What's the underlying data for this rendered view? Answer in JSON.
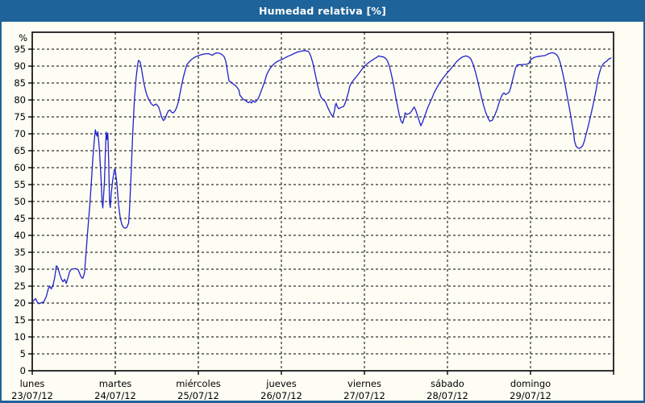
{
  "window": {
    "title": "Humedad relativa [%]"
  },
  "colors": {
    "titlebar_bg": "#1e6399",
    "titlebar_text": "#ffffff",
    "content_bg": "#fdfdf4",
    "grid": "#000000",
    "axis": "#000000",
    "label": "#000000",
    "line": "#2121cb"
  },
  "chart_data": {
    "type": "line",
    "title": "Humedad relativa [%]",
    "ylabel": "%",
    "ylim": [
      0,
      100
    ],
    "ytick_min": 0,
    "ytick_max": 95,
    "ytick_step": 5,
    "grid": true,
    "legend": "none",
    "x_days": [
      {
        "name": "lunes",
        "date": "23/07/12"
      },
      {
        "name": "martes",
        "date": "24/07/12"
      },
      {
        "name": "miércoles",
        "date": "25/07/12"
      },
      {
        "name": "jueves",
        "date": "26/07/12"
      },
      {
        "name": "viernes",
        "date": "27/07/12"
      },
      {
        "name": "sábado",
        "date": "28/07/12"
      },
      {
        "name": "domingo",
        "date": "29/07/12"
      }
    ],
    "series": [
      {
        "name": "Humedad relativa",
        "color": "#2121cb",
        "points": [
          [
            0.0,
            20.3
          ],
          [
            0.02,
            20.8
          ],
          [
            0.04,
            21.3
          ],
          [
            0.06,
            20.3
          ],
          [
            0.08,
            19.8
          ],
          [
            0.11,
            20.1
          ],
          [
            0.14,
            20.4
          ],
          [
            0.17,
            22.0
          ],
          [
            0.19,
            24.0
          ],
          [
            0.21,
            25.0
          ],
          [
            0.23,
            24.2
          ],
          [
            0.25,
            25.3
          ],
          [
            0.27,
            27.5
          ],
          [
            0.29,
            31.0
          ],
          [
            0.31,
            30.4
          ],
          [
            0.33,
            28.6
          ],
          [
            0.35,
            27.2
          ],
          [
            0.37,
            26.3
          ],
          [
            0.39,
            27.0
          ],
          [
            0.41,
            25.8
          ],
          [
            0.43,
            27.5
          ],
          [
            0.45,
            29.2
          ],
          [
            0.47,
            30.0
          ],
          [
            0.5,
            30.1
          ],
          [
            0.52,
            30.2
          ],
          [
            0.55,
            29.9
          ],
          [
            0.57,
            28.8
          ],
          [
            0.59,
            27.6
          ],
          [
            0.61,
            27.3
          ],
          [
            0.63,
            29.0
          ],
          [
            0.65,
            35.7
          ],
          [
            0.67,
            42.0
          ],
          [
            0.69,
            48.0
          ],
          [
            0.71,
            55.0
          ],
          [
            0.73,
            63.0
          ],
          [
            0.75,
            69.0
          ],
          [
            0.76,
            71.2
          ],
          [
            0.77,
            70.2
          ],
          [
            0.78,
            69.3
          ],
          [
            0.79,
            70.6
          ],
          [
            0.81,
            65.0
          ],
          [
            0.83,
            56.0
          ],
          [
            0.84,
            50.3
          ],
          [
            0.85,
            48.1
          ],
          [
            0.87,
            56.0
          ],
          [
            0.88,
            64.0
          ],
          [
            0.89,
            70.5
          ],
          [
            0.9,
            68.3
          ],
          [
            0.91,
            70.2
          ],
          [
            0.92,
            62.0
          ],
          [
            0.93,
            50.0
          ],
          [
            0.94,
            48.2
          ],
          [
            0.95,
            52.0
          ],
          [
            0.97,
            56.5
          ],
          [
            0.99,
            59.5
          ],
          [
            1.0,
            59.3
          ],
          [
            1.02,
            55.0
          ],
          [
            1.04,
            49.0
          ],
          [
            1.06,
            45.0
          ],
          [
            1.08,
            43.2
          ],
          [
            1.1,
            42.3
          ],
          [
            1.12,
            42.1
          ],
          [
            1.14,
            42.4
          ],
          [
            1.16,
            43.6
          ],
          [
            1.17,
            47.0
          ],
          [
            1.19,
            58.0
          ],
          [
            1.21,
            70.0
          ],
          [
            1.23,
            80.0
          ],
          [
            1.25,
            86.5
          ],
          [
            1.27,
            90.5
          ],
          [
            1.28,
            91.7
          ],
          [
            1.3,
            91.2
          ],
          [
            1.32,
            88.5
          ],
          [
            1.34,
            85.5
          ],
          [
            1.36,
            83.2
          ],
          [
            1.38,
            81.5
          ],
          [
            1.4,
            80.3
          ],
          [
            1.42,
            79.4
          ],
          [
            1.44,
            78.7
          ],
          [
            1.46,
            78.3
          ],
          [
            1.49,
            78.8
          ],
          [
            1.52,
            78.0
          ],
          [
            1.54,
            76.5
          ],
          [
            1.56,
            74.8
          ],
          [
            1.58,
            73.9
          ],
          [
            1.6,
            74.5
          ],
          [
            1.62,
            75.8
          ],
          [
            1.64,
            76.8
          ],
          [
            1.66,
            77.0
          ],
          [
            1.68,
            76.3
          ],
          [
            1.7,
            76.2
          ],
          [
            1.72,
            76.8
          ],
          [
            1.74,
            77.8
          ],
          [
            1.76,
            79.5
          ],
          [
            1.78,
            82.0
          ],
          [
            1.8,
            84.5
          ],
          [
            1.82,
            86.8
          ],
          [
            1.84,
            88.6
          ],
          [
            1.86,
            90.3
          ],
          [
            1.89,
            91.3
          ],
          [
            1.92,
            92.0
          ],
          [
            1.95,
            92.5
          ],
          [
            1.98,
            92.9
          ],
          [
            2.0,
            93.1
          ],
          [
            2.04,
            93.4
          ],
          [
            2.08,
            93.6
          ],
          [
            2.12,
            93.7
          ],
          [
            2.15,
            93.4
          ],
          [
            2.17,
            93.2
          ],
          [
            2.19,
            93.6
          ],
          [
            2.22,
            93.9
          ],
          [
            2.25,
            93.8
          ],
          [
            2.28,
            93.5
          ],
          [
            2.31,
            92.8
          ],
          [
            2.33,
            91.5
          ],
          [
            2.35,
            88.5
          ],
          [
            2.37,
            85.6
          ],
          [
            2.4,
            85.2
          ],
          [
            2.42,
            84.7
          ],
          [
            2.45,
            84.2
          ],
          [
            2.47,
            83.6
          ],
          [
            2.49,
            82.8
          ],
          [
            2.5,
            81.4
          ],
          [
            2.52,
            80.8
          ],
          [
            2.54,
            80.2
          ],
          [
            2.57,
            79.8
          ],
          [
            2.6,
            79.2
          ],
          [
            2.62,
            79.5
          ],
          [
            2.64,
            79.1
          ],
          [
            2.66,
            79.8
          ],
          [
            2.68,
            79.3
          ],
          [
            2.7,
            79.7
          ],
          [
            2.72,
            80.4
          ],
          [
            2.74,
            81.5
          ],
          [
            2.77,
            83.5
          ],
          [
            2.8,
            85.5
          ],
          [
            2.82,
            87.3
          ],
          [
            2.85,
            88.8
          ],
          [
            2.88,
            89.8
          ],
          [
            2.91,
            90.6
          ],
          [
            2.94,
            91.2
          ],
          [
            2.97,
            91.6
          ],
          [
            3.0,
            91.9
          ],
          [
            3.04,
            92.4
          ],
          [
            3.08,
            92.9
          ],
          [
            3.12,
            93.3
          ],
          [
            3.16,
            93.8
          ],
          [
            3.2,
            94.2
          ],
          [
            3.24,
            94.4
          ],
          [
            3.28,
            94.6
          ],
          [
            3.32,
            94.4
          ],
          [
            3.34,
            93.8
          ],
          [
            3.36,
            92.5
          ],
          [
            3.38,
            90.8
          ],
          [
            3.4,
            88.5
          ],
          [
            3.42,
            86.2
          ],
          [
            3.44,
            84.0
          ],
          [
            3.46,
            82.0
          ],
          [
            3.48,
            80.7
          ],
          [
            3.5,
            80.2
          ],
          [
            3.51,
            79.9
          ],
          [
            3.53,
            79.5
          ],
          [
            3.55,
            78.3
          ],
          [
            3.57,
            77.2
          ],
          [
            3.59,
            76.2
          ],
          [
            3.61,
            75.3
          ],
          [
            3.62,
            75.1
          ],
          [
            3.64,
            76.8
          ],
          [
            3.65,
            78.5
          ],
          [
            3.66,
            79.0
          ],
          [
            3.67,
            78.2
          ],
          [
            3.69,
            77.4
          ],
          [
            3.71,
            77.7
          ],
          [
            3.73,
            77.9
          ],
          [
            3.75,
            78.1
          ],
          [
            3.77,
            79.2
          ],
          [
            3.79,
            80.8
          ],
          [
            3.81,
            82.4
          ],
          [
            3.82,
            83.8
          ],
          [
            3.84,
            84.9
          ],
          [
            3.86,
            85.6
          ],
          [
            3.89,
            86.5
          ],
          [
            3.92,
            87.4
          ],
          [
            3.95,
            88.4
          ],
          [
            3.98,
            89.4
          ],
          [
            4.0,
            90.0
          ],
          [
            4.03,
            90.6
          ],
          [
            4.06,
            91.2
          ],
          [
            4.09,
            91.7
          ],
          [
            4.12,
            92.2
          ],
          [
            4.15,
            92.6
          ],
          [
            4.17,
            93.0
          ],
          [
            4.2,
            92.8
          ],
          [
            4.23,
            92.7
          ],
          [
            4.26,
            92.2
          ],
          [
            4.28,
            91.4
          ],
          [
            4.3,
            90.0
          ],
          [
            4.32,
            88.0
          ],
          [
            4.34,
            85.8
          ],
          [
            4.36,
            83.2
          ],
          [
            4.38,
            80.5
          ],
          [
            4.4,
            78.0
          ],
          [
            4.42,
            75.5
          ],
          [
            4.44,
            73.8
          ],
          [
            4.46,
            73.1
          ],
          [
            4.48,
            74.8
          ],
          [
            4.49,
            76.2
          ],
          [
            4.51,
            75.7
          ],
          [
            4.53,
            75.9
          ],
          [
            4.55,
            76.1
          ],
          [
            4.57,
            76.8
          ],
          [
            4.6,
            77.9
          ],
          [
            4.62,
            76.8
          ],
          [
            4.64,
            75.3
          ],
          [
            4.66,
            73.8
          ],
          [
            4.68,
            72.4
          ],
          [
            4.7,
            73.4
          ],
          [
            4.72,
            74.9
          ],
          [
            4.74,
            76.2
          ],
          [
            4.76,
            77.6
          ],
          [
            4.79,
            79.3
          ],
          [
            4.82,
            80.9
          ],
          [
            4.84,
            82.2
          ],
          [
            4.87,
            83.5
          ],
          [
            4.9,
            84.8
          ],
          [
            4.93,
            85.9
          ],
          [
            4.96,
            86.9
          ],
          [
            4.99,
            87.8
          ],
          [
            5.0,
            88.1
          ],
          [
            5.03,
            88.9
          ],
          [
            5.07,
            90.1
          ],
          [
            5.11,
            91.3
          ],
          [
            5.15,
            92.2
          ],
          [
            5.18,
            92.7
          ],
          [
            5.22,
            93.0
          ],
          [
            5.25,
            92.8
          ],
          [
            5.28,
            92.2
          ],
          [
            5.31,
            90.5
          ],
          [
            5.34,
            88.0
          ],
          [
            5.37,
            85.0
          ],
          [
            5.4,
            81.8
          ],
          [
            5.43,
            78.8
          ],
          [
            5.46,
            76.3
          ],
          [
            5.49,
            74.6
          ],
          [
            5.51,
            73.7
          ],
          [
            5.54,
            74.0
          ],
          [
            5.57,
            75.5
          ],
          [
            5.6,
            77.4
          ],
          [
            5.63,
            79.8
          ],
          [
            5.66,
            81.6
          ],
          [
            5.68,
            82.1
          ],
          [
            5.7,
            81.6
          ],
          [
            5.72,
            81.9
          ],
          [
            5.74,
            82.2
          ],
          [
            5.76,
            83.5
          ],
          [
            5.78,
            85.5
          ],
          [
            5.8,
            87.5
          ],
          [
            5.82,
            89.5
          ],
          [
            5.84,
            90.3
          ],
          [
            5.86,
            90.4
          ],
          [
            5.89,
            90.4
          ],
          [
            5.92,
            90.5
          ],
          [
            5.95,
            90.5
          ],
          [
            5.98,
            90.8
          ],
          [
            6.0,
            91.8
          ],
          [
            6.02,
            92.2
          ],
          [
            6.05,
            92.6
          ],
          [
            6.08,
            92.8
          ],
          [
            6.11,
            92.9
          ],
          [
            6.14,
            93.0
          ],
          [
            6.17,
            93.1
          ],
          [
            6.19,
            93.3
          ],
          [
            6.22,
            93.7
          ],
          [
            6.25,
            93.9
          ],
          [
            6.28,
            93.9
          ],
          [
            6.3,
            93.6
          ],
          [
            6.32,
            93.2
          ],
          [
            6.34,
            92.3
          ],
          [
            6.36,
            90.8
          ],
          [
            6.38,
            88.8
          ],
          [
            6.4,
            86.5
          ],
          [
            6.42,
            84.0
          ],
          [
            6.44,
            81.3
          ],
          [
            6.46,
            78.7
          ],
          [
            6.48,
            76.0
          ],
          [
            6.5,
            73.0
          ],
          [
            6.52,
            70.0
          ],
          [
            6.53,
            67.8
          ],
          [
            6.55,
            66.3
          ],
          [
            6.57,
            65.8
          ],
          [
            6.59,
            65.7
          ],
          [
            6.61,
            66.0
          ],
          [
            6.63,
            66.6
          ],
          [
            6.65,
            68.0
          ],
          [
            6.67,
            70.0
          ],
          [
            6.69,
            71.8
          ],
          [
            6.71,
            73.8
          ],
          [
            6.73,
            76.0
          ],
          [
            6.75,
            78.2
          ],
          [
            6.77,
            80.5
          ],
          [
            6.79,
            83.0
          ],
          [
            6.81,
            86.0
          ],
          [
            6.83,
            88.0
          ],
          [
            6.85,
            89.5
          ],
          [
            6.87,
            90.4
          ],
          [
            6.89,
            91.0
          ],
          [
            6.91,
            91.3
          ],
          [
            6.94,
            92.0
          ],
          [
            6.96,
            92.3
          ],
          [
            6.97,
            92.4
          ]
        ]
      }
    ]
  }
}
